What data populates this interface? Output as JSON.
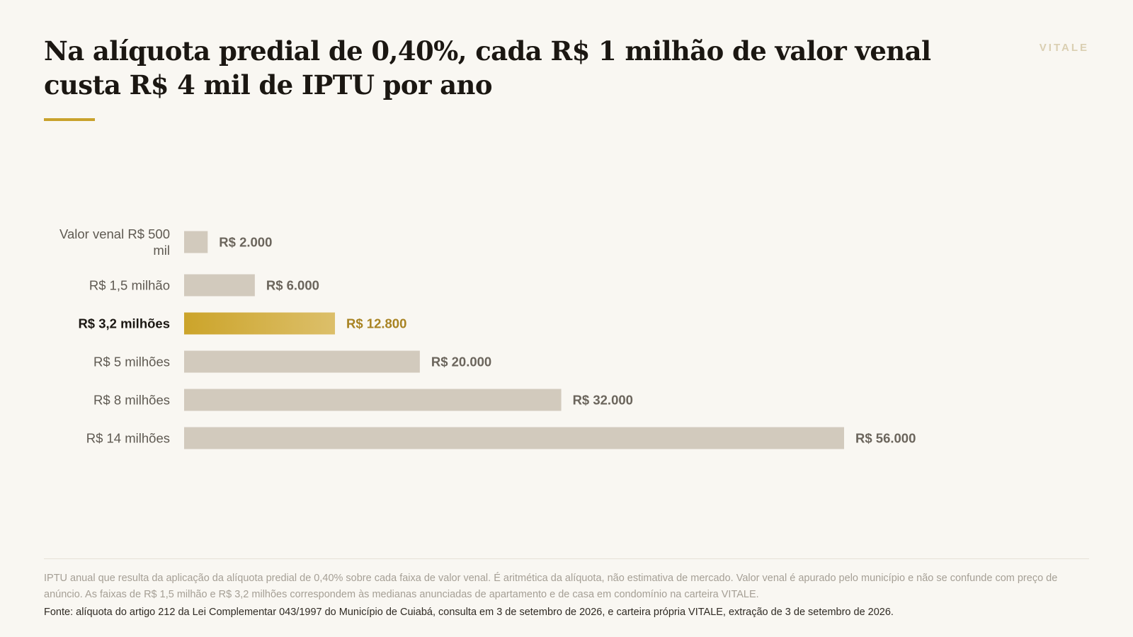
{
  "header": {
    "title": "Na alíquota predial de 0,40%, cada R$ 1 milhão de valor venal custa R$ 4 mil de IPTU por ano",
    "brand": "VITALE"
  },
  "chart_data": {
    "type": "bar",
    "orientation": "horizontal",
    "title": "Na alíquota predial de 0,40%, cada R$ 1 milhão de valor venal custa R$ 4 mil de IPTU por ano",
    "categories": [
      "Valor venal R$ 500 mil",
      "R$ 1,5 milhão",
      "R$ 3,2 milhões",
      "R$ 5 milhões",
      "R$ 8 milhões",
      "R$ 14 milhões"
    ],
    "values": [
      2000,
      6000,
      12800,
      20000,
      32000,
      56000
    ],
    "value_labels": [
      "R$ 2.000",
      "R$ 6.000",
      "R$ 12.800",
      "R$ 20.000",
      "R$ 32.000",
      "R$ 56.000"
    ],
    "highlight_index": 2,
    "xlim": [
      0,
      56000
    ],
    "grid": false,
    "legend": "none",
    "colors": {
      "bar": "#d2cabd",
      "highlight_start": "#cca42a",
      "highlight_end": "#dcbf6a",
      "value_label": "#6b655c",
      "highlight_value_label": "#a88322",
      "category_label": "#5f5a52",
      "highlight_category_label": "#1b1712"
    }
  },
  "footer": {
    "note": "IPTU anual que resulta da aplicação da alíquota predial de 0,40% sobre cada faixa de valor venal. É aritmética da alíquota, não estimativa de mercado. Valor venal é apurado pelo município e não se confunde com preço de anúncio. As faixas de R$ 1,5 milhão e R$ 3,2 milhões correspondem às medianas anunciadas de apartamento e de casa em condomínio na carteira VITALE.",
    "source": "Fonte: alíquota do artigo 212 da Lei Complementar 043/1997 do Município de Cuiabá, consulta em 3 de setembro de 2026, e carteira própria VITALE, extração de 3 de setembro de 2026."
  }
}
